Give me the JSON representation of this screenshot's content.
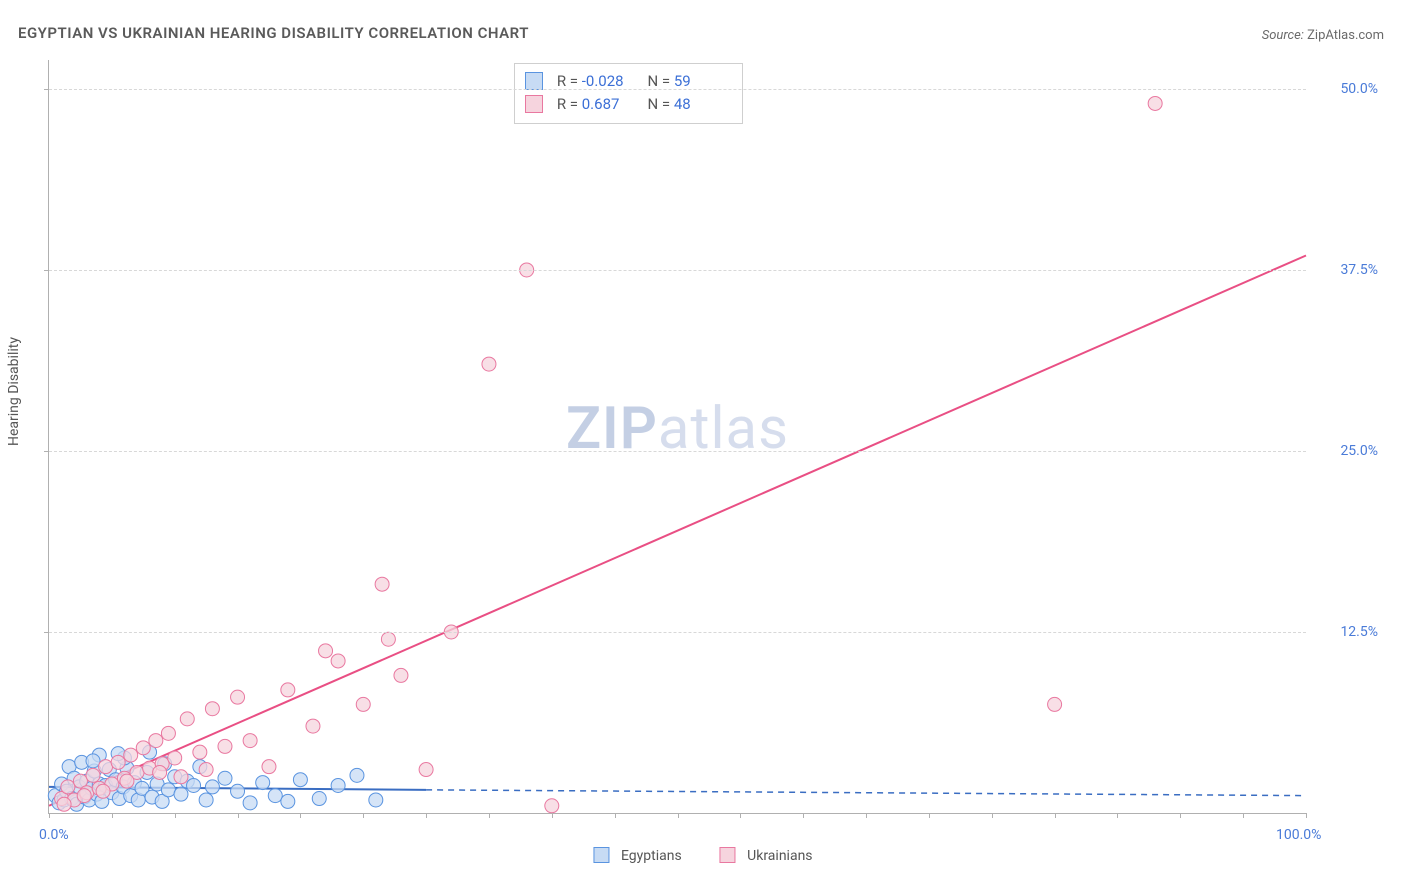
{
  "title": "EGYPTIAN VS UKRAINIAN HEARING DISABILITY CORRELATION CHART",
  "source_label": "Source:",
  "source_value": "ZipAtlas.com",
  "ylabel": "Hearing Disability",
  "watermark_a": "ZIP",
  "watermark_b": "atlas",
  "chart": {
    "type": "scatter",
    "xlim": [
      0,
      100
    ],
    "ylim": [
      0,
      52
    ],
    "x_ticks_minor_step": 5,
    "x_ticks_labels": [
      {
        "v": 0,
        "label": "0.0%"
      },
      {
        "v": 100,
        "label": "100.0%"
      }
    ],
    "y_ticks": [
      {
        "v": 12.5,
        "label": "12.5%"
      },
      {
        "v": 25.0,
        "label": "25.0%"
      },
      {
        "v": 37.5,
        "label": "37.5%"
      },
      {
        "v": 50.0,
        "label": "50.0%"
      }
    ],
    "background_color": "#ffffff",
    "grid_color": "#d8d8d8",
    "series": [
      {
        "name": "Egyptians",
        "color_fill": "#c7dbf4",
        "color_stroke": "#5a94e0",
        "marker_r": 7,
        "reg": {
          "x1": 0,
          "y1": 1.8,
          "x2": 30,
          "y2": 1.6,
          "dash_x2": 100,
          "dash_y2": 1.2,
          "color": "#3a6dc2",
          "width": 2
        },
        "points": [
          [
            0.5,
            1.2
          ],
          [
            0.8,
            0.7
          ],
          [
            1.0,
            2.0
          ],
          [
            1.2,
            0.9
          ],
          [
            1.4,
            1.5
          ],
          [
            1.6,
            3.2
          ],
          [
            1.8,
            1.0
          ],
          [
            2.0,
            2.4
          ],
          [
            2.2,
            0.6
          ],
          [
            2.4,
            1.8
          ],
          [
            2.6,
            3.5
          ],
          [
            2.8,
            1.1
          ],
          [
            3.0,
            2.2
          ],
          [
            3.2,
            0.9
          ],
          [
            3.4,
            1.7
          ],
          [
            3.6,
            2.9
          ],
          [
            3.8,
            1.3
          ],
          [
            4.0,
            2.0
          ],
          [
            4.2,
            0.8
          ],
          [
            4.5,
            1.9
          ],
          [
            4.8,
            3.0
          ],
          [
            5.0,
            1.4
          ],
          [
            5.3,
            2.3
          ],
          [
            5.6,
            1.0
          ],
          [
            5.9,
            1.8
          ],
          [
            6.2,
            3.1
          ],
          [
            6.5,
            1.2
          ],
          [
            6.8,
            2.1
          ],
          [
            7.1,
            0.9
          ],
          [
            7.4,
            1.7
          ],
          [
            7.8,
            2.8
          ],
          [
            8.2,
            1.1
          ],
          [
            8.6,
            2.0
          ],
          [
            9.0,
            0.8
          ],
          [
            9.5,
            1.6
          ],
          [
            10.0,
            2.5
          ],
          [
            10.5,
            1.3
          ],
          [
            11.0,
            2.2
          ],
          [
            11.5,
            1.9
          ],
          [
            12.0,
            3.2
          ],
          [
            12.5,
            0.9
          ],
          [
            13.0,
            1.8
          ],
          [
            14.0,
            2.4
          ],
          [
            15.0,
            1.5
          ],
          [
            16.0,
            0.7
          ],
          [
            17.0,
            2.1
          ],
          [
            18.0,
            1.2
          ],
          [
            19.0,
            0.8
          ],
          [
            20.0,
            2.3
          ],
          [
            21.5,
            1.0
          ],
          [
            23.0,
            1.9
          ],
          [
            24.5,
            2.6
          ],
          [
            26.0,
            0.9
          ],
          [
            6.0,
            3.8
          ],
          [
            8.0,
            4.2
          ],
          [
            4.0,
            4.0
          ],
          [
            3.5,
            3.6
          ],
          [
            9.2,
            3.4
          ],
          [
            5.5,
            4.1
          ]
        ]
      },
      {
        "name": "Ukrainians",
        "color_fill": "#f6d4de",
        "color_stroke": "#e978a0",
        "marker_r": 7,
        "reg": {
          "x1": 0,
          "y1": 0.5,
          "x2": 100,
          "y2": 38.5,
          "color": "#e94f84",
          "width": 2
        },
        "points": [
          [
            1.0,
            1.0
          ],
          [
            1.5,
            1.8
          ],
          [
            2.0,
            0.9
          ],
          [
            2.5,
            2.2
          ],
          [
            3.0,
            1.4
          ],
          [
            3.5,
            2.6
          ],
          [
            4.0,
            1.7
          ],
          [
            4.5,
            3.2
          ],
          [
            5.0,
            2.0
          ],
          [
            5.5,
            3.5
          ],
          [
            6.0,
            2.4
          ],
          [
            6.5,
            4.0
          ],
          [
            7.0,
            2.8
          ],
          [
            7.5,
            4.5
          ],
          [
            8.0,
            3.1
          ],
          [
            8.5,
            5.0
          ],
          [
            9.0,
            3.4
          ],
          [
            9.5,
            5.5
          ],
          [
            10.0,
            3.8
          ],
          [
            11.0,
            6.5
          ],
          [
            12.0,
            4.2
          ],
          [
            13.0,
            7.2
          ],
          [
            14.0,
            4.6
          ],
          [
            15.0,
            8.0
          ],
          [
            10.5,
            2.5
          ],
          [
            12.5,
            3.0
          ],
          [
            16.0,
            5.0
          ],
          [
            17.5,
            3.2
          ],
          [
            19.0,
            8.5
          ],
          [
            21.0,
            6.0
          ],
          [
            23.0,
            10.5
          ],
          [
            25.0,
            7.5
          ],
          [
            27.0,
            12.0
          ],
          [
            22.0,
            11.2
          ],
          [
            28.0,
            9.5
          ],
          [
            30.0,
            3.0
          ],
          [
            26.5,
            15.8
          ],
          [
            32.0,
            12.5
          ],
          [
            35.0,
            31.0
          ],
          [
            38.0,
            37.5
          ],
          [
            40.0,
            0.5
          ],
          [
            80.0,
            7.5
          ],
          [
            88.0,
            49.0
          ],
          [
            1.2,
            0.6
          ],
          [
            2.8,
            1.2
          ],
          [
            4.3,
            1.5
          ],
          [
            6.2,
            2.2
          ],
          [
            8.8,
            2.8
          ]
        ]
      }
    ]
  },
  "stats": [
    {
      "R": "-0.028",
      "N": "59"
    },
    {
      "R": "0.687",
      "N": "48"
    }
  ],
  "stats_labels": {
    "R": "R =",
    "N": "N ="
  },
  "legend_bottom": [
    "Egyptians",
    "Ukrainians"
  ]
}
